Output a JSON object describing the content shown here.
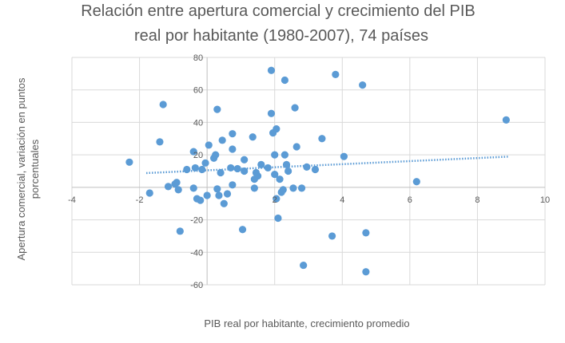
{
  "chart_data": {
    "type": "scatter",
    "title_lines": [
      "Relación entre apertura comercial y crecimiento del PIB",
      "real por habitante (1980-2007), 74 países"
    ],
    "xlabel": "PIB real por habitante, crecimiento promedio",
    "ylabel_lines": [
      "Apertura comercial, variación en puntos",
      "porcentuales"
    ],
    "xlim": [
      -4,
      10
    ],
    "ylim": [
      -60,
      80
    ],
    "x_ticks": [
      -4,
      -2,
      0,
      2,
      4,
      6,
      8,
      10
    ],
    "x_tick_labels": [
      "-4",
      "-2",
      "",
      "2",
      "4",
      "6",
      "8",
      "10"
    ],
    "y_ticks": [
      -60,
      -40,
      -20,
      0,
      20,
      40,
      60,
      80
    ],
    "y_tick_labels": [
      "-60",
      "-40",
      "-20",
      "",
      "20",
      "40",
      "60",
      "80"
    ],
    "grid": true,
    "legend": "none",
    "colors": {
      "points": "#5b9bd5",
      "trend": "#5b9bd5",
      "grid": "#d9d9d9",
      "axis": "#bfbfbf"
    },
    "trendline": {
      "style": "dotted",
      "x0": -1.8,
      "x1": 8.9
    },
    "points": [
      {
        "x": -2.3,
        "y": 15.5
      },
      {
        "x": -1.7,
        "y": -3.5
      },
      {
        "x": -1.4,
        "y": 28
      },
      {
        "x": -1.3,
        "y": 51
      },
      {
        "x": -1.15,
        "y": 0.5
      },
      {
        "x": -0.95,
        "y": 2
      },
      {
        "x": -0.9,
        "y": 3
      },
      {
        "x": -0.85,
        "y": -1.5
      },
      {
        "x": -0.8,
        "y": -27
      },
      {
        "x": -0.4,
        "y": 22
      },
      {
        "x": -0.4,
        "y": -0.5
      },
      {
        "x": -0.35,
        "y": 12
      },
      {
        "x": -0.3,
        "y": -7
      },
      {
        "x": -0.2,
        "y": -8
      },
      {
        "x": -0.15,
        "y": 11
      },
      {
        "x": -0.05,
        "y": 15
      },
      {
        "x": 0,
        "y": -5
      },
      {
        "x": 0.05,
        "y": 26
      },
      {
        "x": 0.2,
        "y": 18
      },
      {
        "x": 0.25,
        "y": 20
      },
      {
        "x": 0.3,
        "y": 48
      },
      {
        "x": 0.3,
        "y": -1
      },
      {
        "x": 0.35,
        "y": -5
      },
      {
        "x": 0.4,
        "y": 9
      },
      {
        "x": 0.45,
        "y": 29
      },
      {
        "x": 0.5,
        "y": -10
      },
      {
        "x": 0.6,
        "y": -4
      },
      {
        "x": 0.7,
        "y": 12
      },
      {
        "x": 0.75,
        "y": 23.5
      },
      {
        "x": 0.75,
        "y": 33
      },
      {
        "x": 0.75,
        "y": 1.5
      },
      {
        "x": 1.1,
        "y": 17
      },
      {
        "x": 1.1,
        "y": 10
      },
      {
        "x": 1.05,
        "y": -26
      },
      {
        "x": 1.35,
        "y": 31
      },
      {
        "x": 1.4,
        "y": 5
      },
      {
        "x": 1.4,
        "y": -0.5
      },
      {
        "x": 1.45,
        "y": 9
      },
      {
        "x": 1.5,
        "y": 7
      },
      {
        "x": 1.6,
        "y": 14
      },
      {
        "x": 1.9,
        "y": 72
      },
      {
        "x": 1.9,
        "y": 45.5
      },
      {
        "x": 1.95,
        "y": 33.5
      },
      {
        "x": 2.0,
        "y": 20
      },
      {
        "x": 2.0,
        "y": 8
      },
      {
        "x": 2.05,
        "y": 36
      },
      {
        "x": 2.05,
        "y": -7
      },
      {
        "x": 2.1,
        "y": -19
      },
      {
        "x": 2.15,
        "y": 5
      },
      {
        "x": 2.2,
        "y": -3
      },
      {
        "x": 2.25,
        "y": -1.5
      },
      {
        "x": 2.3,
        "y": 66
      },
      {
        "x": 2.3,
        "y": 20
      },
      {
        "x": 2.35,
        "y": 14
      },
      {
        "x": 2.4,
        "y": 10
      },
      {
        "x": 2.55,
        "y": -0.5
      },
      {
        "x": 2.6,
        "y": 49
      },
      {
        "x": 2.65,
        "y": 25
      },
      {
        "x": 2.8,
        "y": -0.5
      },
      {
        "x": 2.85,
        "y": -48
      },
      {
        "x": 3.4,
        "y": 30
      },
      {
        "x": 3.7,
        "y": -30
      },
      {
        "x": 3.8,
        "y": 69.5
      },
      {
        "x": 4.05,
        "y": 19
      },
      {
        "x": 4.6,
        "y": 63
      },
      {
        "x": 4.7,
        "y": -28
      },
      {
        "x": 4.7,
        "y": -52
      },
      {
        "x": 6.2,
        "y": 3.5
      },
      {
        "x": 8.85,
        "y": 41.5
      },
      {
        "x": 1.8,
        "y": 12
      },
      {
        "x": 0.9,
        "y": 11.5
      },
      {
        "x": 3.2,
        "y": 11
      },
      {
        "x": -0.6,
        "y": 11
      },
      {
        "x": 2.95,
        "y": 12.5
      }
    ]
  }
}
